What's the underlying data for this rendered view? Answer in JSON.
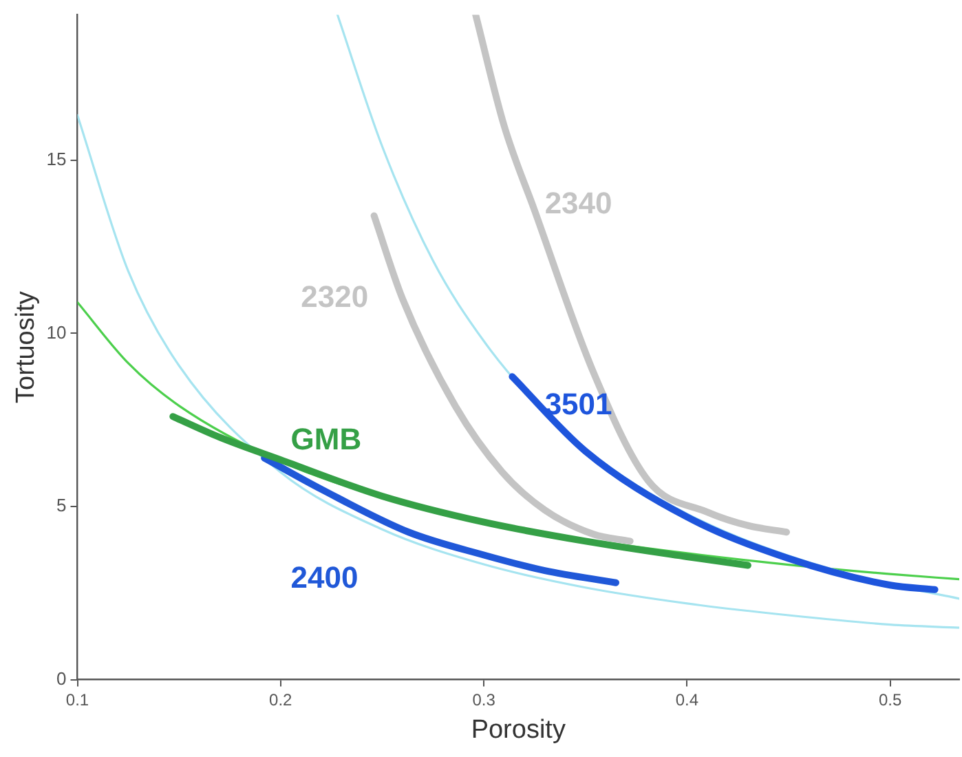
{
  "chart_data": {
    "type": "line",
    "xlabel": "Porosity",
    "ylabel": "Tortuosity",
    "xlim": [
      0.1,
      0.534
    ],
    "xticks": [
      0.1,
      0.2,
      0.3,
      0.4,
      0.5
    ],
    "ylim": [
      0,
      19.2
    ],
    "yticks": [
      0,
      5,
      10,
      15
    ],
    "grid": false,
    "legend": false,
    "marker": "none",
    "line_style": "solid",
    "series": [
      {
        "color": "#a6e4f0",
        "x": [
          0.1,
          0.125,
          0.15,
          0.2,
          0.25,
          0.3,
          0.35,
          0.4,
          0.45,
          0.5,
          0.534
        ],
        "values": [
          16.3,
          11.8,
          9.07,
          5.99,
          4.34,
          3.33,
          2.66,
          2.2,
          1.86,
          1.59,
          1.5
        ]
      },
      {
        "color": "#a6e4f0",
        "x": [
          0.228,
          0.25,
          0.275,
          0.3,
          0.325,
          0.35,
          0.375,
          0.4,
          0.425,
          0.45,
          0.475,
          0.5,
          0.534
        ],
        "values": [
          19.2,
          15.4,
          12.1,
          9.78,
          8.02,
          6.67,
          5.62,
          4.79,
          4.12,
          3.58,
          3.13,
          2.75,
          2.34
        ]
      },
      {
        "color": "#4ccf4c",
        "x": [
          0.1,
          0.125,
          0.15,
          0.2,
          0.25,
          0.3,
          0.35,
          0.4,
          0.45,
          0.5,
          0.534
        ],
        "values": [
          10.9,
          9.14,
          7.91,
          6.3,
          5.28,
          4.58,
          4.05,
          3.65,
          3.32,
          3.05,
          2.9
        ]
      },
      {
        "name": "GMB",
        "color": "#35a046",
        "x": [
          0.147,
          0.17,
          0.2,
          0.25,
          0.3,
          0.35,
          0.4,
          0.43
        ],
        "values": [
          7.6,
          7.0,
          6.35,
          5.3,
          4.55,
          4.0,
          3.55,
          3.3
        ]
      },
      {
        "name": "2400",
        "color": "#2058d8",
        "x": [
          0.192,
          0.22,
          0.263,
          0.3,
          0.33,
          0.365
        ],
        "values": [
          6.4,
          5.5,
          4.26,
          3.6,
          3.15,
          2.8
        ]
      },
      {
        "name": "3501",
        "color": "#1e55dc",
        "x": [
          0.314,
          0.35,
          0.4,
          0.45,
          0.5,
          0.522
        ],
        "values": [
          8.75,
          6.6,
          4.7,
          3.5,
          2.73,
          2.6
        ]
      },
      {
        "name": "2340",
        "color": "#c4c4c4",
        "x": [
          0.296,
          0.31,
          0.325,
          0.354,
          0.381,
          0.41,
          0.43,
          0.449
        ],
        "values": [
          19.2,
          16.0,
          13.55,
          8.87,
          5.74,
          4.84,
          4.45,
          4.26
        ]
      },
      {
        "name": "2320",
        "color": "#c4c4c4",
        "x": [
          0.246,
          0.26,
          0.286,
          0.309,
          0.33,
          0.354,
          0.372
        ],
        "values": [
          13.4,
          11.0,
          7.9,
          6.0,
          4.9,
          4.2,
          4.0
        ]
      }
    ]
  }
}
